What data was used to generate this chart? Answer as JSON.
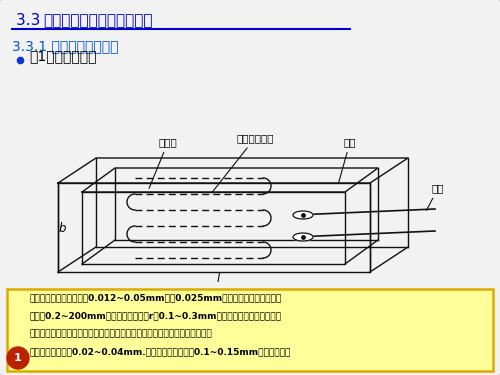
{
  "bg_color": "#e0e0e0",
  "slide_bg": "#f2f2f2",
  "title_text_plain": "3.3  ",
  "title_text_bold": "电阻应变片种类及工作特性",
  "title_color": "#0000cc",
  "subtitle_text": "3.3.1 电阻应变片的种类",
  "subtitle_color": "#0055cc",
  "bullet_text": "（1）金属应变片",
  "bullet_color": "#000000",
  "note_bg": "#ffff99",
  "note_border": "#ddaa00",
  "note_text_line1": "敏感栅的栅丝直径一般为0.012~0.05mm，以0.025mm最常用。栅长依照用途不",
  "note_text_line2": "同可为0.2~200mm。回线的曲率半径r为0.1~0.3mm。基片用以保持敏感栅及引",
  "note_text_line3": "线的几何形状和相对位置，为使被测件的应变迅速而准确地传递到敏感栅上，",
  "note_text_line4": "基片很薄，一般为0.02~0.04mm.引线通常使用直径为0.1~0.15mm的镀锡铜线。",
  "label_baohu": "保护片",
  "label_jinshu": "金属丝敏感栅",
  "label_jidi": "基底",
  "label_yinxian": "引线",
  "label_b": "b",
  "label_l": "l",
  "page_num": "1",
  "line_color": "#111111",
  "line_width": 1.0
}
